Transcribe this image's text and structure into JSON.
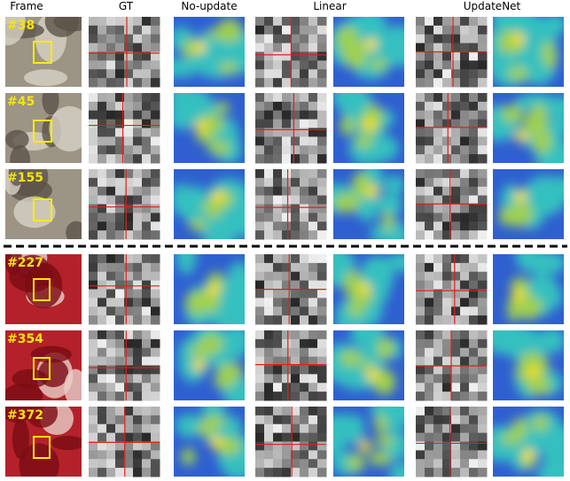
{
  "columns": [
    "Frame",
    "GT",
    "No-update",
    "Linear",
    "UpdateNet"
  ],
  "frames": [
    "#38",
    "#45",
    "#155",
    "#227",
    "#354",
    "#372"
  ]
}
